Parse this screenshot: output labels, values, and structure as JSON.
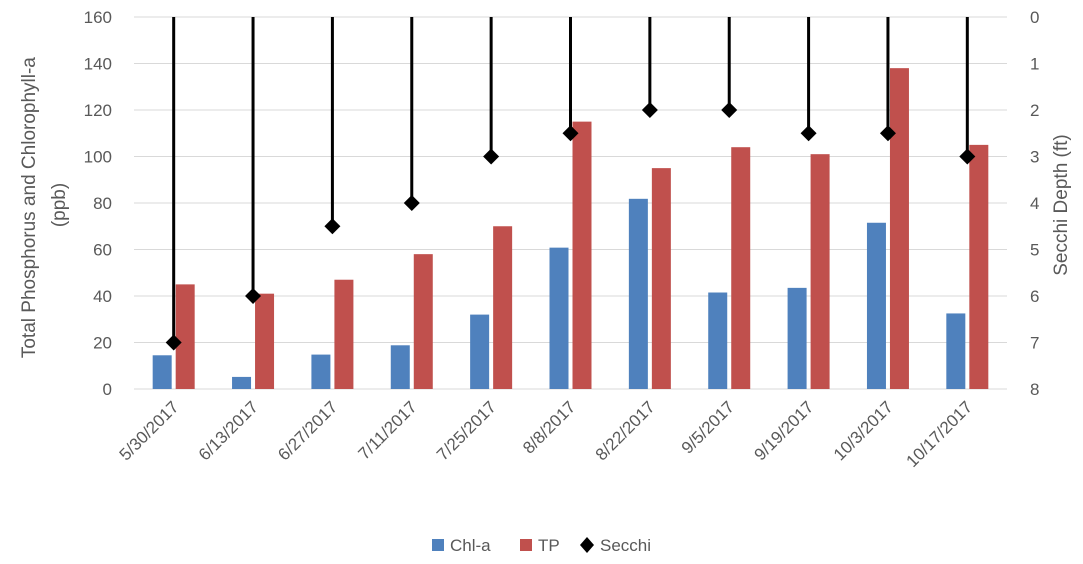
{
  "chart_data": {
    "type": "bar",
    "categories": [
      "5/30/2017",
      "6/13/2017",
      "6/27/2017",
      "7/11/2017",
      "7/25/2017",
      "8/8/2017",
      "8/22/2017",
      "9/5/2017",
      "9/19/2017",
      "10/3/2017",
      "10/17/2017"
    ],
    "series": [
      {
        "name": "Chl-a",
        "type": "bar",
        "axis": "left",
        "color": "#4F81BD",
        "values": [
          14.5,
          5.2,
          14.8,
          18.8,
          32,
          60.8,
          81.8,
          41.5,
          43.5,
          71.5,
          32.5
        ]
      },
      {
        "name": "TP",
        "type": "bar",
        "axis": "left",
        "color": "#C0504D",
        "values": [
          45,
          41,
          47,
          58,
          70,
          115,
          95,
          104,
          101,
          138,
          105
        ]
      },
      {
        "name": "Secchi",
        "type": "line-marker",
        "axis": "right",
        "color": "#000000",
        "marker": "diamond",
        "values": [
          7,
          6,
          4.5,
          4,
          3,
          2.5,
          2,
          2,
          2.5,
          2.5,
          3
        ]
      }
    ],
    "ylabel": "Total Phosphorus and Chlorophyll-a (ppb)",
    "ylabel_lines": [
      "Total Phosphorus and Chlorophyll-a",
      "(ppb)"
    ],
    "ylim": [
      0,
      160
    ],
    "yticks": [
      0,
      20,
      40,
      60,
      80,
      100,
      120,
      140,
      160
    ],
    "y2label": "Secchi Depth (ft)",
    "y2lim": [
      0,
      8
    ],
    "y2_reversed": true,
    "y2ticks": [
      0,
      1,
      2,
      3,
      4,
      5,
      6,
      7,
      8
    ],
    "grid": "horizontal",
    "legend_position": "bottom"
  }
}
